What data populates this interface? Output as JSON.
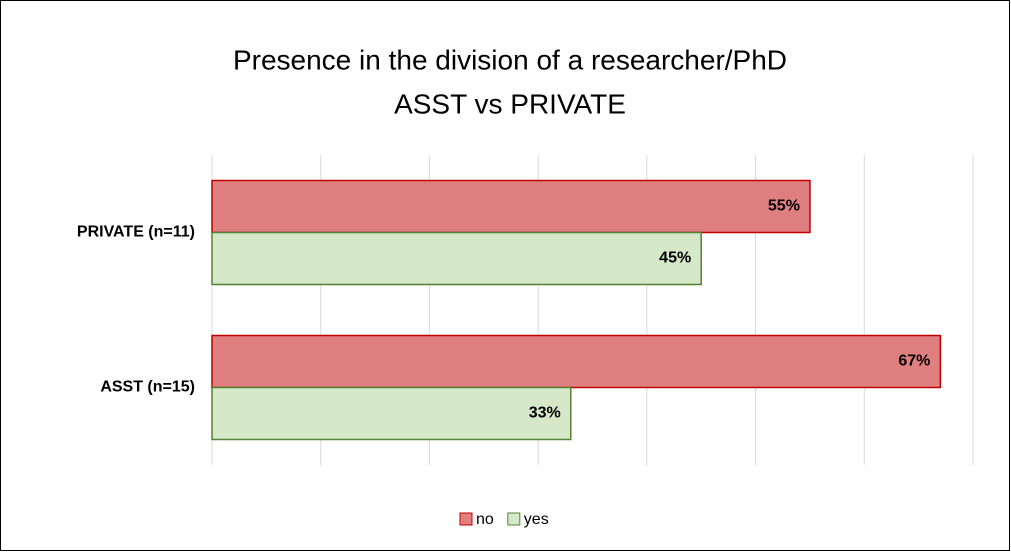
{
  "chart_data": {
    "type": "bar",
    "orientation": "horizontal",
    "title": [
      "Presence in the division of a researcher/PhD",
      "ASST vs PRIVATE"
    ],
    "categories": [
      "PRIVATE (n=11)",
      "ASST (n=15)"
    ],
    "series": [
      {
        "name": "no",
        "color": "#e07f7f",
        "edge": "#c00000",
        "values": [
          55,
          67
        ],
        "value_labels": [
          "55%",
          "67%"
        ]
      },
      {
        "name": "yes",
        "color": "#d5e8c8",
        "edge": "#548235",
        "values": [
          45,
          33
        ],
        "value_labels": [
          "45%",
          "33%"
        ]
      }
    ],
    "xlim": [
      0,
      70
    ],
    "xticks": [
      0,
      10,
      20,
      30,
      40,
      50,
      60,
      70
    ],
    "grid": true,
    "legend": "bottom"
  }
}
